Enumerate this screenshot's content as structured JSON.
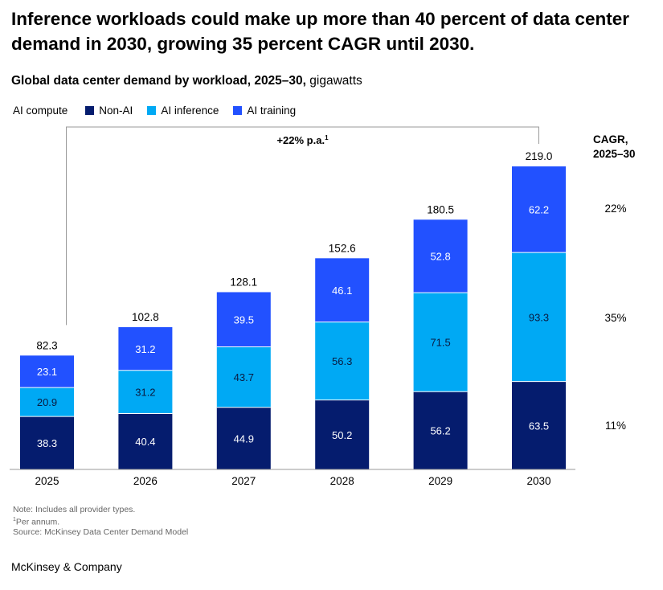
{
  "header": {
    "title": "Inference workloads could make up more than 40 percent of data center demand in 2030, growing 35 percent CAGR until 2030.",
    "subtitle_bold": "Global data center demand by workload, 2025–30,",
    "subtitle_unit": " gigawatts"
  },
  "legend": {
    "heading": "AI compute",
    "items": [
      {
        "label": "Non-AI",
        "color": "#051c6e"
      },
      {
        "label": "AI inference",
        "color": "#00a9f4"
      },
      {
        "label": "AI training",
        "color": "#2251ff"
      }
    ]
  },
  "chart_data": {
    "type": "bar",
    "stacked": true,
    "categories": [
      "2025",
      "2026",
      "2027",
      "2028",
      "2029",
      "2030"
    ],
    "series": [
      {
        "name": "Non-AI",
        "color": "#051c6e",
        "values": [
          38.3,
          40.4,
          44.9,
          50.2,
          56.2,
          63.5
        ],
        "value_labels": [
          "38.3",
          "40.4",
          "44.9",
          "50.2",
          "56.2",
          "63.5"
        ]
      },
      {
        "name": "AI inference",
        "color": "#00a9f4",
        "values": [
          20.9,
          31.2,
          43.7,
          56.3,
          71.5,
          93.3
        ],
        "value_labels": [
          "20.9",
          "31.2",
          "43.7",
          "56.3",
          "71.5",
          "93.3"
        ]
      },
      {
        "name": "AI training",
        "color": "#2251ff",
        "values": [
          23.1,
          31.2,
          39.5,
          46.1,
          52.8,
          62.2
        ],
        "value_labels": [
          "23.1",
          "31.2",
          "39.5",
          "46.1",
          "52.8",
          "62.2"
        ]
      }
    ],
    "totals": [
      82.3,
      102.8,
      128.1,
      152.6,
      180.5,
      219.0
    ],
    "total_labels": [
      "82.3",
      "102.8",
      "128.1",
      "152.6",
      "180.5",
      "219.0"
    ],
    "ylim": [
      0,
      219
    ],
    "grid": false,
    "annotation": {
      "text": "+22% p.a.",
      "superscript": "1"
    },
    "cagr": {
      "heading_line1": "CAGR,",
      "heading_line2": "2025–30",
      "values": [
        "22%",
        "35%",
        "11%"
      ]
    }
  },
  "footer": {
    "note": "Note: Includes all provider types.",
    "footnote_marker": "1",
    "footnote": "Per annum.",
    "source": "Source: McKinsey Data Center Demand Model",
    "logo": "McKinsey & Company"
  }
}
